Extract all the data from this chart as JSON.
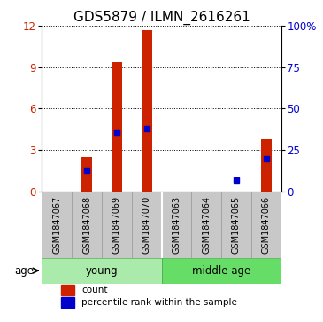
{
  "title": "GDS5879 / ILMN_2616261",
  "samples": [
    "GSM1847067",
    "GSM1847068",
    "GSM1847069",
    "GSM1847070",
    "GSM1847063",
    "GSM1847064",
    "GSM1847065",
    "GSM1847066"
  ],
  "count_values": [
    0.0,
    2.5,
    9.4,
    11.7,
    0.0,
    0.0,
    0.0,
    3.8
  ],
  "percentile_values": [
    0.0,
    13.0,
    36.0,
    38.0,
    0.0,
    0.0,
    7.0,
    20.0
  ],
  "ylim_left": [
    0,
    12
  ],
  "ylim_right": [
    0,
    100
  ],
  "yticks_left": [
    0,
    3,
    6,
    9,
    12
  ],
  "yticks_right": [
    0,
    25,
    50,
    75,
    100
  ],
  "bar_color": "#CC2200",
  "percentile_color": "#0000CC",
  "bar_width": 0.35,
  "percentile_marker_size": 5,
  "background_color": "#ffffff",
  "plot_bg_color": "#ffffff",
  "label_color_left": "#CC2200",
  "label_color_right": "#0000CC",
  "age_label": "age",
  "group_gray_color": "#C8C8C8",
  "group_gray_edge": "#999999",
  "young_color": "#AAEAAA",
  "middleage_color": "#66DD66",
  "tick_label_fontsize": 7,
  "title_fontsize": 11,
  "legend_fontsize": 7.5
}
